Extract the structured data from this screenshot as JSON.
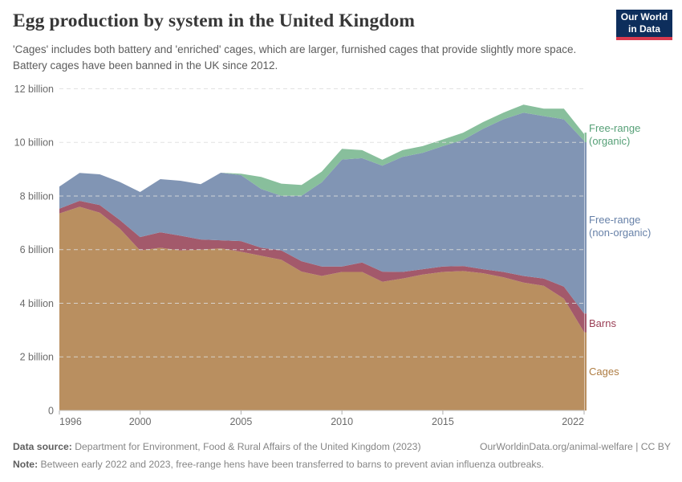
{
  "header": {
    "title": "Egg production by system in the United Kingdom",
    "subtitle": "'Cages' includes both battery and 'enriched' cages, which are larger, furnished cages that provide slightly more space. Battery cages have been banned in the UK since 2012.",
    "logo_line1": "Our World",
    "logo_line2": "in Data",
    "logo_bg_color": "#0d2e5c",
    "logo_accent_color": "#d93a4e"
  },
  "chart_data": {
    "type": "area",
    "stacked": true,
    "title": "Egg production by system in the United Kingdom",
    "unit": "eggs per year",
    "x": [
      1996,
      1997,
      1998,
      1999,
      2000,
      2001,
      2002,
      2003,
      2004,
      2005,
      2006,
      2007,
      2008,
      2009,
      2010,
      2011,
      2012,
      2013,
      2014,
      2015,
      2016,
      2017,
      2018,
      2019,
      2020,
      2021,
      2022
    ],
    "xticks": [
      1996,
      2000,
      2005,
      2010,
      2015,
      2022
    ],
    "ylim": [
      0,
      12
    ],
    "yticks": [
      {
        "value": 0,
        "label": "0"
      },
      {
        "value": 2,
        "label": "2 billion"
      },
      {
        "value": 4,
        "label": "4 billion"
      },
      {
        "value": 6,
        "label": "6 billion"
      },
      {
        "value": 8,
        "label": "8 billion"
      },
      {
        "value": 10,
        "label": "10 billion"
      },
      {
        "value": 12,
        "label": "12 billion"
      }
    ],
    "grid": "dashed-horizontal",
    "legend_position": "right-of-plot",
    "series": [
      {
        "name": "Cages",
        "label1": "Cages",
        "label2": "",
        "color": "#b98f60",
        "label_color": "#ae7c42",
        "values_billion": [
          7.35,
          7.6,
          7.38,
          6.78,
          5.97,
          6.07,
          5.97,
          6.0,
          6.05,
          5.92,
          5.77,
          5.62,
          5.18,
          5.02,
          5.17,
          5.17,
          4.8,
          4.92,
          5.07,
          5.17,
          5.2,
          5.12,
          4.97,
          4.77,
          4.65,
          4.17,
          2.92
        ]
      },
      {
        "name": "Barns",
        "label1": "Barns",
        "label2": "",
        "color": "#a3596b",
        "label_color": "#9a3e55",
        "values_billion": [
          0.18,
          0.22,
          0.28,
          0.32,
          0.5,
          0.58,
          0.55,
          0.38,
          0.3,
          0.4,
          0.3,
          0.35,
          0.39,
          0.35,
          0.2,
          0.35,
          0.38,
          0.25,
          0.2,
          0.2,
          0.19,
          0.15,
          0.2,
          0.25,
          0.27,
          0.45,
          0.7
        ]
      },
      {
        "name": "Free-range (non-organic)",
        "label1": "Free-range",
        "label2": "(non-organic)",
        "color": "#8195b4",
        "label_color": "#6781a8",
        "values_billion": [
          0.82,
          1.04,
          1.15,
          1.42,
          1.68,
          1.98,
          2.05,
          2.06,
          2.52,
          2.46,
          2.19,
          2.04,
          2.44,
          3.14,
          3.99,
          3.89,
          3.95,
          4.29,
          4.34,
          4.49,
          4.7,
          5.24,
          5.69,
          6.09,
          6.06,
          6.24,
          6.44
        ]
      },
      {
        "name": "Free-range (organic)",
        "label1": "Free-range",
        "label2": "(organic)",
        "color": "#88bf9c",
        "label_color": "#56a077",
        "values_billion": [
          0,
          0,
          0,
          0,
          0,
          0,
          0,
          0,
          0,
          0.05,
          0.45,
          0.45,
          0.4,
          0.4,
          0.4,
          0.3,
          0.22,
          0.25,
          0.25,
          0.25,
          0.27,
          0.25,
          0.25,
          0.3,
          0.28,
          0.4,
          0.25
        ]
      }
    ]
  },
  "footer": {
    "data_source_label": "Data source:",
    "data_source_text": "Department for Environment, Food & Rural Affairs of the United Kingdom (2023)",
    "link_text": "OurWorldinData.org/animal-welfare | CC BY",
    "note_label": "Note:",
    "note_text": "Between early 2022 and 2023, free-range hens have been transferred to barns to prevent avian influenza outbreaks."
  }
}
